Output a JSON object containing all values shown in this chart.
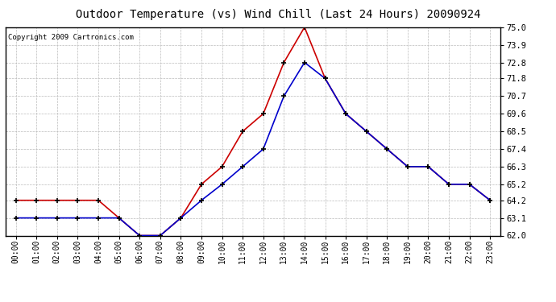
{
  "title": "Outdoor Temperature (vs) Wind Chill (Last 24 Hours) 20090924",
  "copyright": "Copyright 2009 Cartronics.com",
  "x_labels": [
    "00:00",
    "01:00",
    "02:00",
    "03:00",
    "04:00",
    "05:00",
    "06:00",
    "07:00",
    "08:00",
    "09:00",
    "10:00",
    "11:00",
    "12:00",
    "13:00",
    "14:00",
    "15:00",
    "16:00",
    "17:00",
    "18:00",
    "19:00",
    "20:00",
    "21:00",
    "22:00",
    "23:00"
  ],
  "temp_red": [
    64.2,
    64.2,
    64.2,
    64.2,
    64.2,
    63.1,
    62.0,
    62.0,
    63.1,
    65.2,
    66.3,
    68.5,
    69.6,
    72.8,
    75.0,
    71.8,
    69.6,
    68.5,
    67.4,
    66.3,
    66.3,
    65.2,
    65.2,
    64.2
  ],
  "wind_chill_blue": [
    63.1,
    63.1,
    63.1,
    63.1,
    63.1,
    63.1,
    62.0,
    62.0,
    63.1,
    64.2,
    65.2,
    66.3,
    67.4,
    70.7,
    72.8,
    71.8,
    69.6,
    68.5,
    67.4,
    66.3,
    66.3,
    65.2,
    65.2,
    64.2
  ],
  "ylim_min": 62.0,
  "ylim_max": 75.0,
  "yticks": [
    62.0,
    63.1,
    64.2,
    65.2,
    66.3,
    67.4,
    68.5,
    69.6,
    70.7,
    71.8,
    72.8,
    73.9,
    75.0
  ],
  "ytick_labels": [
    "62.0",
    "63.1",
    "64.2",
    "65.2",
    "66.3",
    "67.4",
    "68.5",
    "69.6",
    "70.7",
    "71.8",
    "72.8",
    "73.9",
    "75.0"
  ],
  "red_color": "#cc0000",
  "blue_color": "#0000cc",
  "bg_color": "#ffffff",
  "grid_color": "#bbbbbb",
  "title_fontsize": 10,
  "copyright_fontsize": 6.5,
  "tick_fontsize": 7,
  "ytick_fontsize": 7.5
}
